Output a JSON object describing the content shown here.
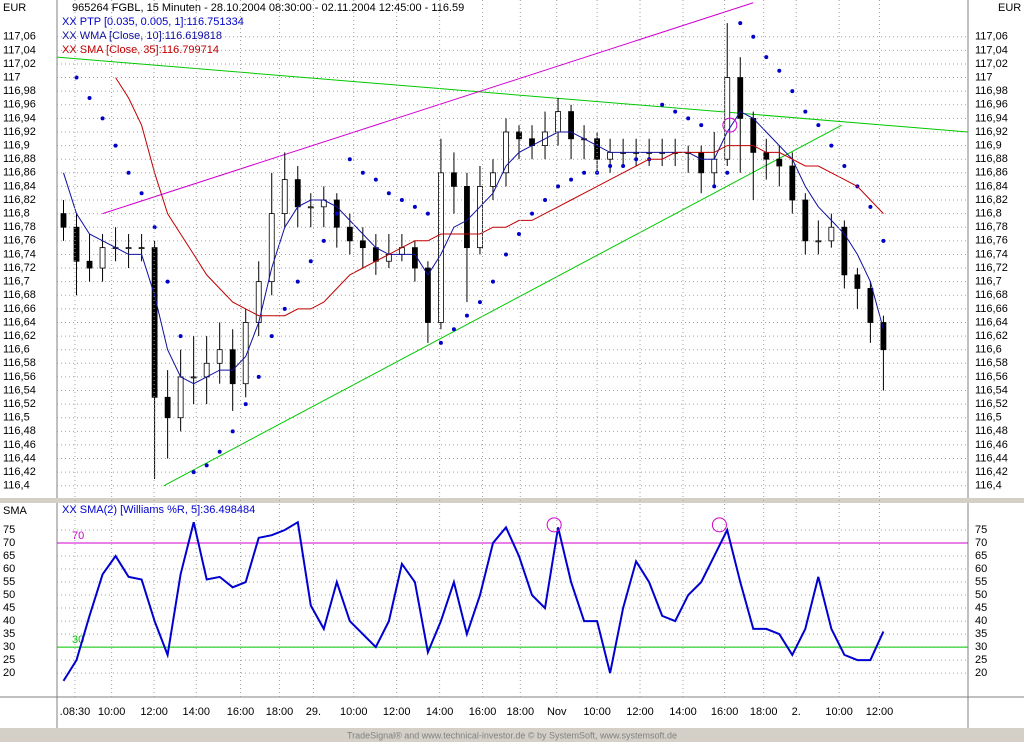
{
  "chart_data": [
    {
      "type": "candlestick",
      "title": "965264  FGBL, 15 Minuten - 28.10.2004 08:30:00 - 02.11.2004 12:45:00 - 116.59",
      "axis_label": "EUR",
      "xlim": [
        -0.5,
        69.5
      ],
      "ylim": [
        116.382,
        117.114
      ],
      "yticks": [
        {
          "value": 116.4,
          "label": "116,4"
        },
        {
          "value": 116.42,
          "label": "116,42"
        },
        {
          "value": 116.44,
          "label": "116,44"
        },
        {
          "value": 116.46,
          "label": "116,46"
        },
        {
          "value": 116.48,
          "label": "116,48"
        },
        {
          "value": 116.5,
          "label": "116,5"
        },
        {
          "value": 116.52,
          "label": "116,52"
        },
        {
          "value": 116.54,
          "label": "116,54"
        },
        {
          "value": 116.56,
          "label": "116,56"
        },
        {
          "value": 116.58,
          "label": "116,58"
        },
        {
          "value": 116.6,
          "label": "116,6"
        },
        {
          "value": 116.62,
          "label": "116,62"
        },
        {
          "value": 116.64,
          "label": "116,64"
        },
        {
          "value": 116.66,
          "label": "116,66"
        },
        {
          "value": 116.68,
          "label": "116,68"
        },
        {
          "value": 116.7,
          "label": "116,7"
        },
        {
          "value": 116.72,
          "label": "116,72"
        },
        {
          "value": 116.74,
          "label": "116,74"
        },
        {
          "value": 116.76,
          "label": "116,76"
        },
        {
          "value": 116.78,
          "label": "116,78"
        },
        {
          "value": 116.8,
          "label": "116,8"
        },
        {
          "value": 116.82,
          "label": "116,82"
        },
        {
          "value": 116.84,
          "label": "116,84"
        },
        {
          "value": 116.86,
          "label": "116,86"
        },
        {
          "value": 116.88,
          "label": "116,88"
        },
        {
          "value": 116.9,
          "label": "116,9"
        },
        {
          "value": 116.92,
          "label": "116,92"
        },
        {
          "value": 116.94,
          "label": "116,94"
        },
        {
          "value": 116.96,
          "label": "116,96"
        },
        {
          "value": 116.98,
          "label": "116,98"
        },
        {
          "value": 117.0,
          "label": "117"
        },
        {
          "value": 117.02,
          "label": "117,02"
        },
        {
          "value": 117.04,
          "label": "117,04"
        },
        {
          "value": 117.06,
          "label": "117,06"
        }
      ],
      "open": [
        116.8,
        116.78,
        116.73,
        116.72,
        116.75,
        116.75,
        116.75,
        116.75,
        116.53,
        116.5,
        116.56,
        116.56,
        116.58,
        116.6,
        116.55,
        116.64,
        116.7,
        116.8,
        116.85,
        116.81,
        116.81,
        116.82,
        116.78,
        116.76,
        116.75,
        116.73,
        116.74,
        116.75,
        116.72,
        116.64,
        116.86,
        116.84,
        116.75,
        116.84,
        116.86,
        116.92,
        116.91,
        116.9,
        116.92,
        116.95,
        116.91,
        116.91,
        116.88,
        116.89,
        116.89,
        116.89,
        116.89,
        116.89,
        116.89,
        116.89,
        116.86,
        116.88,
        117.0,
        116.94,
        116.89,
        116.88,
        116.87,
        116.82,
        116.76,
        116.76,
        116.78,
        116.71,
        116.69,
        116.64
      ],
      "high": [
        116.82,
        116.8,
        116.77,
        116.77,
        116.78,
        116.77,
        116.77,
        116.76,
        116.57,
        116.6,
        116.62,
        116.62,
        116.64,
        116.63,
        116.66,
        116.73,
        116.86,
        116.89,
        116.87,
        116.83,
        116.84,
        116.83,
        116.8,
        116.78,
        116.77,
        116.77,
        116.77,
        116.76,
        116.73,
        116.91,
        116.89,
        116.86,
        116.87,
        116.88,
        116.94,
        116.93,
        116.93,
        116.95,
        116.97,
        116.96,
        116.93,
        116.92,
        116.91,
        116.91,
        116.91,
        116.91,
        116.91,
        116.91,
        116.9,
        116.9,
        116.92,
        117.08,
        117.03,
        116.95,
        116.91,
        116.9,
        116.89,
        116.83,
        116.79,
        116.8,
        116.79,
        116.72,
        116.7,
        116.65
      ],
      "low": [
        116.76,
        116.68,
        116.7,
        116.7,
        116.73,
        116.72,
        116.73,
        116.41,
        116.44,
        116.48,
        116.52,
        116.52,
        116.55,
        116.51,
        116.53,
        116.62,
        116.68,
        116.78,
        116.78,
        116.78,
        116.78,
        116.75,
        116.74,
        116.72,
        116.71,
        116.72,
        116.73,
        116.7,
        116.61,
        116.63,
        116.8,
        116.67,
        116.74,
        116.82,
        116.84,
        116.88,
        116.88,
        116.88,
        116.9,
        116.88,
        116.88,
        116.86,
        116.86,
        116.87,
        116.87,
        116.87,
        116.87,
        116.87,
        116.86,
        116.83,
        116.84,
        116.87,
        116.86,
        116.82,
        116.85,
        116.84,
        116.8,
        116.74,
        116.74,
        116.75,
        116.69,
        116.66,
        116.61,
        116.54
      ],
      "close": [
        116.78,
        116.73,
        116.72,
        116.75,
        116.75,
        116.75,
        116.75,
        116.53,
        116.5,
        116.56,
        116.56,
        116.58,
        116.6,
        116.55,
        116.64,
        116.7,
        116.8,
        116.85,
        116.81,
        116.81,
        116.82,
        116.78,
        116.76,
        116.75,
        116.73,
        116.74,
        116.75,
        116.72,
        116.64,
        116.86,
        116.84,
        116.75,
        116.84,
        116.86,
        116.92,
        116.91,
        116.9,
        116.92,
        116.95,
        116.91,
        116.91,
        116.88,
        116.89,
        116.89,
        116.89,
        116.89,
        116.89,
        116.89,
        116.89,
        116.86,
        116.88,
        117.0,
        116.94,
        116.89,
        116.88,
        116.87,
        116.82,
        116.76,
        116.76,
        116.78,
        116.71,
        116.69,
        116.64,
        116.6
      ],
      "series": [
        {
          "name": "XX PTP [0.035, 0.005, 1]:116.751334",
          "color": "#0000c8",
          "style": "dots",
          "values": [
            null,
            117.0,
            116.97,
            116.94,
            116.9,
            116.86,
            116.83,
            116.78,
            116.7,
            116.62,
            116.42,
            116.43,
            116.45,
            116.48,
            116.52,
            116.56,
            116.62,
            116.66,
            116.7,
            116.73,
            116.76,
            116.8,
            116.88,
            116.86,
            116.85,
            116.83,
            116.82,
            116.81,
            116.8,
            116.61,
            116.63,
            116.65,
            116.67,
            116.7,
            116.74,
            116.77,
            116.8,
            116.82,
            116.84,
            116.85,
            116.86,
            116.86,
            116.87,
            116.87,
            116.88,
            116.88,
            116.96,
            116.95,
            116.94,
            116.93,
            116.84,
            116.86,
            117.08,
            117.06,
            117.03,
            117.01,
            116.98,
            116.95,
            116.93,
            116.9,
            116.87,
            116.84,
            116.81,
            116.76
          ]
        },
        {
          "name": "XX WMA [Close, 10]:116.619818",
          "color": "#1010a0",
          "style": "line",
          "values": [
            116.86,
            116.8,
            116.77,
            116.76,
            116.75,
            116.74,
            116.74,
            116.68,
            116.6,
            116.56,
            116.55,
            116.56,
            116.57,
            116.57,
            116.59,
            116.64,
            116.72,
            116.78,
            116.81,
            116.82,
            116.82,
            116.81,
            116.79,
            116.77,
            116.75,
            116.74,
            116.74,
            116.74,
            116.71,
            116.74,
            116.78,
            116.79,
            116.81,
            116.83,
            116.87,
            116.89,
            116.9,
            116.91,
            116.92,
            116.92,
            116.91,
            116.9,
            116.89,
            116.89,
            116.89,
            116.89,
            116.89,
            116.89,
            116.89,
            116.88,
            116.88,
            116.92,
            116.95,
            116.94,
            116.92,
            116.9,
            116.88,
            116.84,
            116.81,
            116.79,
            116.77,
            116.74,
            116.7,
            116.63
          ]
        },
        {
          "name": "XX SMA [Close, 35]:116.799714",
          "color": "#c00000",
          "style": "line",
          "values": [
            null,
            null,
            null,
            null,
            117.0,
            116.97,
            116.93,
            116.86,
            116.8,
            116.77,
            116.74,
            116.71,
            116.69,
            116.67,
            116.66,
            116.65,
            116.65,
            116.65,
            116.66,
            116.66,
            116.67,
            116.69,
            116.71,
            116.72,
            116.73,
            116.74,
            116.75,
            116.76,
            116.76,
            116.77,
            116.77,
            116.77,
            116.77,
            116.78,
            116.78,
            116.79,
            116.79,
            116.8,
            116.81,
            116.82,
            116.83,
            116.84,
            116.85,
            116.86,
            116.87,
            116.88,
            116.88,
            116.89,
            116.89,
            116.89,
            116.89,
            116.9,
            116.9,
            116.9,
            116.89,
            116.89,
            116.88,
            116.87,
            116.87,
            116.86,
            116.85,
            116.84,
            116.82,
            116.8
          ]
        }
      ],
      "trendlines": [
        {
          "color": "#00c800",
          "from": [
            -0.5,
            117.03
          ],
          "to": [
            69.5,
            116.92
          ]
        },
        {
          "color": "#d000d0",
          "from": [
            3,
            116.8
          ],
          "to": [
            53,
            117.11
          ]
        },
        {
          "color": "#00c800",
          "from": [
            7.7,
            116.4
          ],
          "to": [
            59.8,
            116.93
          ]
        }
      ],
      "circles": [
        {
          "color": "#d000d0",
          "at": [
            51.2,
            116.93
          ]
        }
      ]
    },
    {
      "type": "line",
      "axis_label": "SMA",
      "xlim": [
        -0.5,
        69.5
      ],
      "ylim": [
        10.8,
        85.4
      ],
      "yticks": [
        20,
        25,
        30,
        35,
        40,
        45,
        50,
        55,
        60,
        65,
        70,
        75
      ],
      "xticks": [
        {
          "value": 0.88,
          "label": ".08:30"
        },
        {
          "value": 3.7,
          "label": "10:00"
        },
        {
          "value": 6.96,
          "label": "12:00"
        },
        {
          "value": 10.2,
          "label": "14:00"
        },
        {
          "value": 13.6,
          "label": "16:00"
        },
        {
          "value": 16.6,
          "label": "18:00"
        },
        {
          "value": 19.2,
          "label": "29."
        },
        {
          "value": 22.3,
          "label": "10:00"
        },
        {
          "value": 25.6,
          "label": "12:00"
        },
        {
          "value": 28.9,
          "label": "14:00"
        },
        {
          "value": 32.2,
          "label": "16:00"
        },
        {
          "value": 35.1,
          "label": "18:00"
        },
        {
          "value": 37.9,
          "label": "Nov"
        },
        {
          "value": 41.0,
          "label": "10:00"
        },
        {
          "value": 44.3,
          "label": "12:00"
        },
        {
          "value": 47.6,
          "label": "14:00"
        },
        {
          "value": 50.8,
          "label": "16:00"
        },
        {
          "value": 53.8,
          "label": "18:00"
        },
        {
          "value": 56.3,
          "label": "2."
        },
        {
          "value": 59.6,
          "label": "10:00"
        },
        {
          "value": 62.7,
          "label": "12:00"
        }
      ],
      "series": [
        {
          "name": "XX SMA(2) [Williams %R, 5]:36.498484",
          "color": "#0000d0",
          "values": [
            17,
            25,
            42,
            58,
            65,
            57,
            56,
            40,
            27,
            58,
            78,
            56,
            57,
            53,
            55,
            72,
            73,
            75,
            78,
            46,
            37,
            55,
            40,
            35,
            30,
            40,
            62,
            55,
            28,
            40,
            55,
            35,
            50,
            70,
            76,
            65,
            50,
            45,
            76,
            55,
            40,
            40,
            20,
            45,
            63,
            55,
            42,
            40,
            50,
            55,
            65,
            75,
            55,
            37,
            37,
            35,
            27,
            37,
            57,
            37,
            27,
            25,
            25,
            36
          ]
        }
      ],
      "levels": [
        {
          "value": 70,
          "label": "70",
          "color": "#d000d0"
        },
        {
          "value": 30,
          "label": "30",
          "color": "#00c800"
        }
      ],
      "circles": [
        {
          "color": "#d000d0",
          "at": [
            37.7,
            77
          ]
        },
        {
          "color": "#d000d0",
          "at": [
            50.4,
            77
          ]
        }
      ]
    }
  ],
  "footer": "TradeSignal® and www.technical-investor.de © by SystemSoft, www.systemsoft.de"
}
